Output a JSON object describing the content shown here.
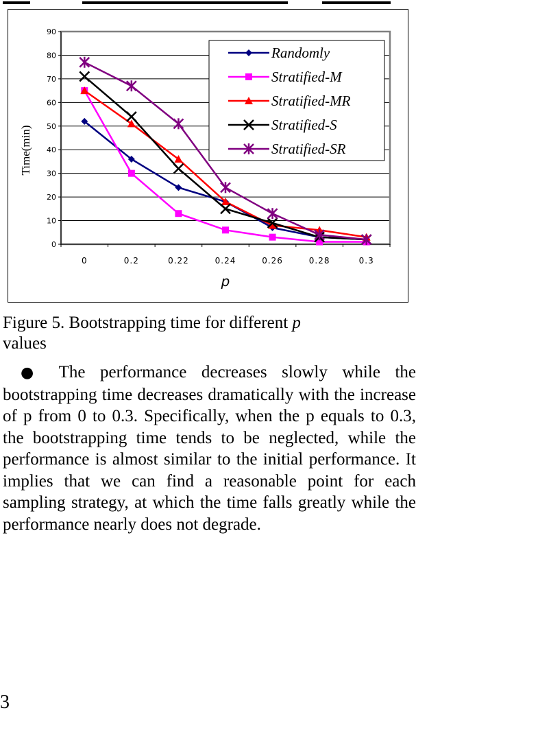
{
  "caption": {
    "label": "Figure 5.",
    "text_before_var": "Bootstrapping time for different",
    "variable": "p",
    "text_after_var": "values"
  },
  "paragraph": {
    "bullet_text": "The performance decreases slowly while the bootstrapping time decreases dramatically with the increase of p from 0 to 0.3. Specifically, when the p equals to 0.3, the bootstrapping time tends to be neglected, while the performance is almost similar to the initial performance. It implies that we can find a reasonable point for each sampling strategy, at which the time falls greatly while the performance nearly does not degrade."
  },
  "page_number": "3",
  "chart_data": {
    "type": "line",
    "title": "",
    "xlabel": "p",
    "ylabel": "Time(min)",
    "categories": [
      "0",
      "0.2",
      "0.22",
      "0.24",
      "0.26",
      "0.28",
      "0.3"
    ],
    "ylim": [
      0,
      90
    ],
    "yticks": [
      0,
      10,
      20,
      30,
      40,
      50,
      60,
      70,
      80,
      90
    ],
    "grid": "horizontal",
    "legend_position": "top-right",
    "series": [
      {
        "name": "Randomly",
        "color": "#000080",
        "marker": "diamond",
        "values": [
          52,
          36,
          24,
          18,
          7,
          3,
          2
        ]
      },
      {
        "name": "Stratified-M",
        "color": "#ff00ff",
        "marker": "square",
        "values": [
          65,
          30,
          13,
          6,
          3,
          1,
          1
        ]
      },
      {
        "name": "Stratified-MR",
        "color": "#ff0000",
        "marker": "triangle",
        "values": [
          65,
          51,
          36,
          18,
          8,
          6,
          3
        ]
      },
      {
        "name": "Stratified-S",
        "color": "#000000",
        "marker": "x",
        "values": [
          71,
          54,
          32,
          15,
          9,
          3,
          2
        ]
      },
      {
        "name": "Stratified-SR",
        "color": "#800080",
        "marker": "star",
        "values": [
          77,
          67,
          51,
          24,
          13,
          4,
          2
        ]
      }
    ]
  }
}
